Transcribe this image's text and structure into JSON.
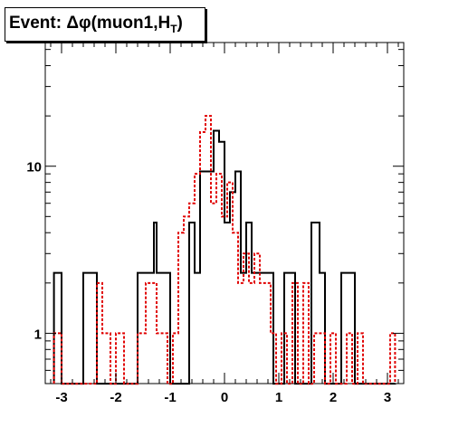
{
  "chart_data": {
    "type": "histogram",
    "title": "Event: Δφ(muon1,H_T)",
    "title_main": "Event: Δφ(muon1,H",
    "title_sub": "T",
    "title_close": ")",
    "xlabel": "",
    "ylabel": "",
    "y_scale": "log",
    "xlim": [
      -3.3,
      3.3
    ],
    "ylim": [
      0.5,
      55
    ],
    "x_ticks": [
      -3,
      -2,
      -1,
      0,
      1,
      2,
      3
    ],
    "x_tick_labels": [
      "-3",
      "-2",
      "-1",
      "0",
      "1",
      "2",
      "3"
    ],
    "y_ticks": [
      1,
      10
    ],
    "y_tick_labels": [
      "1",
      "10"
    ],
    "grid": false,
    "legend": null,
    "bin_edges": [
      -3.3,
      -3.1,
      -2.9,
      -2.7,
      -2.5,
      -2.3,
      -2.1,
      -1.9,
      -1.7,
      -1.5,
      -1.3,
      -1.1,
      -0.9,
      -0.7,
      -0.5,
      -0.3,
      -0.1,
      0.1,
      0.3,
      0.5,
      0.7,
      0.9,
      1.1,
      1.3,
      1.5,
      1.7,
      1.9,
      2.1,
      2.3,
      2.5,
      2.7,
      2.9,
      3.1,
      3.3
    ],
    "series": [
      {
        "style": "solid",
        "color": "#000000",
        "bin_edges": [
          -3.14,
          -3.0,
          -2.85,
          -2.6,
          -2.35,
          -2.2,
          -1.6,
          -1.3,
          -1.25,
          -1.0,
          -0.95,
          -0.65,
          -0.55,
          -0.45,
          -0.3,
          -0.2,
          -0.1,
          0.0,
          0.1,
          0.2,
          0.3,
          0.4,
          0.5,
          0.6,
          0.7,
          0.8,
          0.9,
          1.1,
          1.3,
          1.4,
          1.6,
          1.75,
          1.85,
          2.0,
          2.15,
          2.3,
          2.4,
          2.6,
          3.14
        ],
        "values": [
          2.3,
          0.4,
          0.4,
          2.3,
          0.4,
          0.4,
          2.3,
          4.6,
          2.3,
          0.4,
          0.4,
          4.6,
          2.3,
          9.3,
          9.3,
          16.3,
          14.0,
          4.6,
          7.0,
          9.3,
          2.3,
          4.6,
          2.3,
          2.3,
          2.3,
          2.3,
          0.4,
          2.3,
          0.4,
          0.4,
          4.6,
          2.3,
          0.4,
          0.4,
          2.3,
          2.3,
          0.4,
          0.4
        ]
      },
      {
        "style": "dashed",
        "color": "#e00000",
        "bin_edges": [
          -3.14,
          -3.0,
          -2.9,
          -2.75,
          -2.55,
          -2.35,
          -2.25,
          -2.1,
          -2.0,
          -1.85,
          -1.8,
          -1.6,
          -1.45,
          -1.25,
          -1.05,
          -0.95,
          -0.85,
          -0.75,
          -0.65,
          -0.55,
          -0.45,
          -0.35,
          -0.25,
          -0.15,
          -0.05,
          0.05,
          0.15,
          0.25,
          0.35,
          0.45,
          0.55,
          0.65,
          0.75,
          0.85,
          0.95,
          1.05,
          1.15,
          1.25,
          1.35,
          1.45,
          1.55,
          1.65,
          1.75,
          1.85,
          1.95,
          2.05,
          2.15,
          2.25,
          2.35,
          2.45,
          2.55,
          2.65,
          2.75,
          2.85,
          2.95,
          3.05,
          3.14
        ],
        "values": [
          1.0,
          0.4,
          0.4,
          0.4,
          0.4,
          2.0,
          1.0,
          0.4,
          1.0,
          0.4,
          0.4,
          1.0,
          2.0,
          1.0,
          0.4,
          1.0,
          4.0,
          5.0,
          6.0,
          9.0,
          16.0,
          20.0,
          6.0,
          9.0,
          5.0,
          8.0,
          4.0,
          2.0,
          3.0,
          2.0,
          3.0,
          2.0,
          2.0,
          1.0,
          0.4,
          1.0,
          0.4,
          2.0,
          0.4,
          2.0,
          0.4,
          1.0,
          1.0,
          0.4,
          1.0,
          0.4,
          0.4,
          1.0,
          0.4,
          1.0,
          0.4,
          0.4,
          0.4,
          0.4,
          0.4,
          1.0
        ]
      }
    ]
  }
}
